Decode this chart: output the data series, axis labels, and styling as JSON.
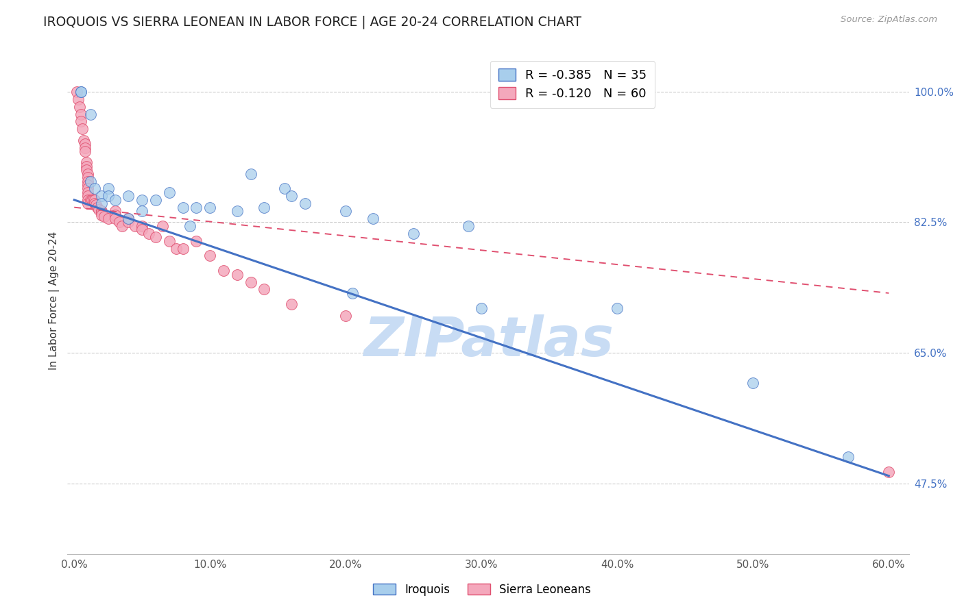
{
  "title": "IROQUOIS VS SIERRA LEONEAN IN LABOR FORCE | AGE 20-24 CORRELATION CHART",
  "source": "Source: ZipAtlas.com",
  "ylabel": "In Labor Force | Age 20-24",
  "xlabel_ticks": [
    "0.0%",
    "10.0%",
    "20.0%",
    "30.0%",
    "40.0%",
    "50.0%",
    "60.0%"
  ],
  "xlabel_vals": [
    0.0,
    0.1,
    0.2,
    0.3,
    0.4,
    0.5,
    0.6
  ],
  "ylabel_ticks": [
    "47.5%",
    "65.0%",
    "82.5%",
    "100.0%"
  ],
  "ylabel_vals": [
    0.475,
    0.65,
    0.825,
    1.0
  ],
  "xlim": [
    -0.005,
    0.615
  ],
  "ylim": [
    0.38,
    1.06
  ],
  "legend_blue_R": "-0.385",
  "legend_blue_N": "35",
  "legend_pink_R": "-0.120",
  "legend_pink_N": "60",
  "legend_label_blue": "Iroquois",
  "legend_label_pink": "Sierra Leoneans",
  "blue_color": "#A8CEEC",
  "pink_color": "#F4A8BC",
  "trend_blue_color": "#4472C4",
  "trend_pink_color": "#E05070",
  "watermark_color": "#C8DCF4",
  "iroquois_x": [
    0.005,
    0.005,
    0.012,
    0.012,
    0.015,
    0.02,
    0.02,
    0.025,
    0.025,
    0.03,
    0.04,
    0.04,
    0.05,
    0.05,
    0.06,
    0.07,
    0.08,
    0.085,
    0.09,
    0.1,
    0.12,
    0.13,
    0.14,
    0.155,
    0.16,
    0.17,
    0.2,
    0.205,
    0.22,
    0.25,
    0.29,
    0.3,
    0.4,
    0.5,
    0.57
  ],
  "iroquois_y": [
    1.0,
    1.0,
    0.97,
    0.88,
    0.87,
    0.86,
    0.85,
    0.87,
    0.86,
    0.855,
    0.86,
    0.83,
    0.855,
    0.84,
    0.855,
    0.865,
    0.845,
    0.82,
    0.845,
    0.845,
    0.84,
    0.89,
    0.845,
    0.87,
    0.86,
    0.85,
    0.84,
    0.73,
    0.83,
    0.81,
    0.82,
    0.71,
    0.71,
    0.61,
    0.51
  ],
  "sierra_x": [
    0.002,
    0.003,
    0.004,
    0.005,
    0.005,
    0.006,
    0.007,
    0.008,
    0.008,
    0.008,
    0.009,
    0.009,
    0.009,
    0.01,
    0.01,
    0.01,
    0.01,
    0.01,
    0.01,
    0.01,
    0.01,
    0.01,
    0.012,
    0.013,
    0.014,
    0.015,
    0.015,
    0.016,
    0.017,
    0.018,
    0.02,
    0.02,
    0.02,
    0.022,
    0.025,
    0.03,
    0.03,
    0.03,
    0.033,
    0.035,
    0.04,
    0.04,
    0.045,
    0.05,
    0.05,
    0.055,
    0.06,
    0.065,
    0.07,
    0.075,
    0.08,
    0.09,
    0.1,
    0.11,
    0.12,
    0.13,
    0.14,
    0.16,
    0.2,
    0.6
  ],
  "sierra_y": [
    1.0,
    0.99,
    0.98,
    0.97,
    0.96,
    0.95,
    0.935,
    0.93,
    0.925,
    0.92,
    0.905,
    0.9,
    0.895,
    0.89,
    0.885,
    0.88,
    0.875,
    0.87,
    0.865,
    0.86,
    0.855,
    0.85,
    0.855,
    0.855,
    0.855,
    0.855,
    0.85,
    0.848,
    0.845,
    0.842,
    0.84,
    0.838,
    0.835,
    0.833,
    0.83,
    0.84,
    0.835,
    0.83,
    0.825,
    0.82,
    0.83,
    0.825,
    0.82,
    0.82,
    0.815,
    0.81,
    0.805,
    0.82,
    0.8,
    0.79,
    0.79,
    0.8,
    0.78,
    0.76,
    0.755,
    0.745,
    0.735,
    0.715,
    0.7,
    0.49
  ],
  "background_color": "#FFFFFF",
  "grid_color": "#CCCCCC",
  "trend_blue_x0": 0.0,
  "trend_blue_x1": 0.6,
  "trend_blue_y0": 0.855,
  "trend_blue_y1": 0.485,
  "trend_pink_x0": 0.0,
  "trend_pink_x1": 0.6,
  "trend_pink_y0": 0.845,
  "trend_pink_y1": 0.73
}
